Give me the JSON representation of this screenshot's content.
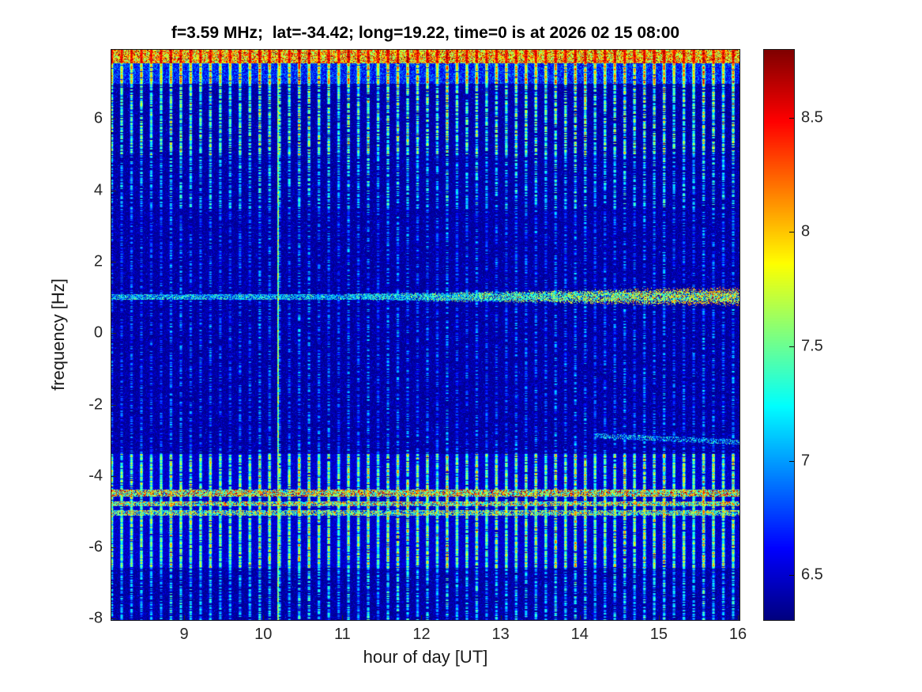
{
  "title": "f=3.59 MHz;  lat=-34.42; long=19.22, time=0 is at 2026 02 15 08:00",
  "chart_data": {
    "type": "heatmap",
    "title": "f=3.59 MHz;  lat=-34.42; long=19.22, time=0 is at 2026 02 15 08:00",
    "xlabel": "hour of day [UT]",
    "ylabel": "frequency [Hz]",
    "x_range": [
      8.07,
      16.03
    ],
    "y_range": [
      -8.06,
      7.96
    ],
    "x_ticks": [
      9,
      10,
      11,
      12,
      13,
      14,
      15,
      16
    ],
    "y_ticks": [
      6,
      4,
      2,
      0,
      -2,
      -4,
      -6,
      -8
    ],
    "grid": false,
    "colormap": "jet",
    "colorbar": {
      "min": 6.3,
      "max": 8.8,
      "ticks": [
        8.5,
        8,
        7.5,
        7,
        6.5
      ],
      "position": "right"
    },
    "background_level": [
      6.3,
      6.6
    ],
    "stripes": {
      "period_hours": 0.125,
      "description": "periodic vertical interference stripes across the whole record"
    },
    "stripe_regions": [
      {
        "y": [
          7.58,
          7.97
        ],
        "base": [
          7.5,
          8.85
        ],
        "stripe": [
          8.35,
          8.85
        ],
        "density": 1.0
      },
      {
        "y": [
          7.0,
          7.58
        ],
        "base": [
          6.45,
          7.05
        ],
        "stripe": [
          7.6,
          8.75
        ],
        "density": 0.95
      },
      {
        "y": [
          5.0,
          7.0
        ],
        "base": null,
        "stripe": [
          7.0,
          8.35
        ],
        "density": 0.8
      },
      {
        "y": [
          3.5,
          5.0
        ],
        "base": null,
        "stripe": [
          6.8,
          7.8
        ],
        "density": 0.62
      },
      {
        "y": [
          -3.4,
          3.5
        ],
        "base": null,
        "stripe": [
          6.6,
          7.35
        ],
        "density": 0.5
      },
      {
        "y": [
          -6.6,
          -3.4
        ],
        "base": [
          6.36,
          6.62
        ],
        "stripe": [
          7.05,
          8.5
        ],
        "density": 0.92
      },
      {
        "y": [
          -8.07,
          -6.6
        ],
        "base": null,
        "stripe": [
          6.75,
          7.75
        ],
        "density": 0.7
      }
    ],
    "h_lines": [
      {
        "y": 1.02,
        "hw": 0.08,
        "x": [
          8.07,
          16.03
        ],
        "int": [
          6.8,
          7.6
        ],
        "dash": 0.8,
        "ramp": [
          11.0,
          16.0
        ],
        "ramp_boost": 1.2,
        "ramp_spread": 0.22,
        "label": "signal trace at +1 Hz, strengthens to orange/red after 14 UT"
      },
      {
        "y": -4.5,
        "hw": 0.1,
        "x": [
          8.07,
          16.03
        ],
        "int": [
          7.1,
          8.8
        ],
        "dash": 0.9,
        "label": "strong speckled interference row"
      },
      {
        "y": -4.8,
        "hw": 0.07,
        "x": [
          8.07,
          16.03
        ],
        "int": [
          7.0,
          8.5
        ],
        "dash": 0.85,
        "label": "strong speckled interference row"
      },
      {
        "y": -5.05,
        "hw": 0.07,
        "x": [
          8.07,
          16.03
        ],
        "int": [
          6.9,
          8.3
        ],
        "dash": 0.8,
        "label": "speckled interference row"
      },
      {
        "y": -2.88,
        "hw": 0.07,
        "x": [
          14.2,
          16.03
        ],
        "int": [
          6.7,
          7.6
        ],
        "dash": 0.6,
        "slope": -0.1,
        "label": "faint trace near -3 Hz after 14.2 UT"
      }
    ],
    "v_lines": [
      {
        "x": 10.18,
        "w": 2,
        "int": [
          7.1,
          7.9
        ],
        "label": "bright vertical line near 10.2 UT"
      }
    ],
    "notes": [
      "dark blue noise background ~6.3-6.6",
      "dense red band along the very top edge (above ~7.6 Hz)",
      "strong horizontal interference band between -4.3 and -5.2 Hz with red/yellow speckles"
    ]
  }
}
